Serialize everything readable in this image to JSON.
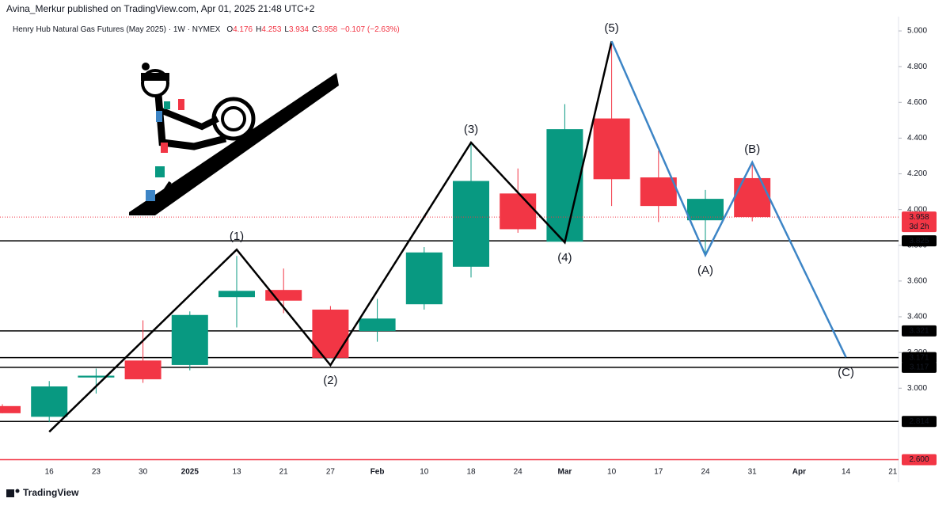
{
  "header": {
    "published": "Avina_Merkur published on TradingView.com, Apr 01, 2025 21:48 UTC+2"
  },
  "footer": {
    "brand": "TradingView"
  },
  "chart_data": {
    "type": "candlestick",
    "title": "Henry Hub Natural Gas Futures (May 2025) · 1W · NYMEX",
    "ohlc_keys": [
      "O",
      "H",
      "L",
      "C"
    ],
    "change": "−0.107 (−2.63%)",
    "categories": [
      null,
      "16",
      "23",
      "30",
      "2025",
      "13",
      "21",
      "27",
      "Feb",
      "10",
      "18",
      "24",
      "Mar",
      "10",
      "17",
      "24",
      "31",
      "Apr",
      "14",
      "21"
    ],
    "open": [
      2.9,
      2.84,
      3.06,
      3.155,
      3.13,
      3.51,
      3.55,
      3.44,
      3.32,
      3.47,
      3.68,
      4.09,
      3.82,
      4.51,
      4.18,
      3.94,
      4.176,
      null,
      null,
      null
    ],
    "high": [
      2.91,
      3.04,
      3.11,
      3.38,
      3.43,
      3.74,
      3.67,
      3.46,
      3.5,
      3.79,
      4.38,
      4.23,
      4.59,
      4.93,
      4.33,
      4.11,
      4.253,
      null,
      null,
      null
    ],
    "low": [
      2.86,
      2.81,
      2.97,
      3.03,
      3.1,
      3.34,
      3.42,
      3.17,
      3.26,
      3.44,
      3.62,
      3.87,
      3.81,
      4.02,
      3.93,
      3.75,
      3.934,
      null,
      null,
      null
    ],
    "close": [
      2.86,
      3.01,
      3.07,
      3.05,
      3.41,
      3.545,
      3.49,
      3.17,
      3.39,
      3.76,
      4.16,
      3.89,
      4.45,
      4.17,
      4.02,
      4.06,
      3.958,
      null,
      null,
      null
    ],
    "up_color": "#089981",
    "down_color": "#f23645",
    "ylim": [
      2.58,
      5.08
    ],
    "yticks": [
      {
        "value": 3,
        "label": "3.000"
      },
      {
        "value": 3.2,
        "label": "3.200"
      },
      {
        "value": 3.4,
        "label": "3.400"
      },
      {
        "value": 3.6,
        "label": "3.600"
      },
      {
        "value": 3.8,
        "label": "3.800"
      },
      {
        "value": 4,
        "label": "4.000"
      },
      {
        "value": 4.2,
        "label": "4.200"
      },
      {
        "value": 4.4,
        "label": "4.400"
      },
      {
        "value": 4.6,
        "label": "4.600"
      },
      {
        "value": 4.8,
        "label": "4.800"
      },
      {
        "value": 5,
        "label": "5.000"
      }
    ],
    "levels": [
      {
        "value": 3.825,
        "color": "#000000"
      },
      {
        "value": 3.321,
        "color": "#000000"
      },
      {
        "value": 3.171,
        "color": "#000000"
      },
      {
        "value": 3.117,
        "color": "#000000"
      },
      {
        "value": 2.814,
        "color": "#000000"
      },
      {
        "value": {
          "value": 2.6,
          "label": "2.600"
        },
        "color": "#f23645"
      }
    ],
    "countdown": "3d 2h",
    "waves": [
      {
        "color": "#000000",
        "points": [
          {
            "i": 1,
            "v": 2.756
          },
          {
            "i": 5,
            "v": 3.776,
            "label": "(1)"
          },
          {
            "i": 7,
            "v": 3.129,
            "label": "(2)"
          },
          {
            "i": 10,
            "v": 4.375,
            "label": "(3)"
          },
          {
            "i": 12,
            "v": 3.816,
            "label": "(4)"
          },
          {
            "i": 13,
            "v": 4.942,
            "label": "(5)"
          }
        ]
      },
      {
        "color": "#3d85c6",
        "points": [
          {
            "i": 13,
            "v": 4.942
          },
          {
            "i": 15,
            "v": 3.745,
            "label": "(A)"
          },
          {
            "i": 16,
            "v": 4.264,
            "label": "(B)"
          },
          {
            "i": 18,
            "v": 3.173,
            "label": "(C)"
          }
        ]
      }
    ]
  }
}
